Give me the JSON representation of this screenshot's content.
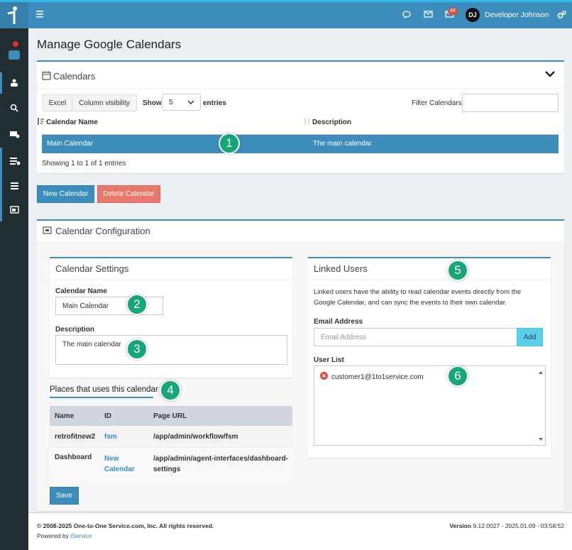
{
  "topbar": {
    "badge": "48",
    "avatar": "DJ",
    "user": "Developer Johnson"
  },
  "page_title": "Manage Google Calendars",
  "calendars": {
    "title": "Calendars",
    "buttons": [
      "Excel",
      "Column visibility"
    ],
    "show_label": "Show",
    "show_value": "5",
    "entries_label": "entries",
    "filter_label": "Filter Calendars",
    "columns": [
      "Calendar Name",
      "Description"
    ],
    "rows": [
      [
        "Main Calendar",
        "The main calendar"
      ]
    ],
    "info": "Showing 1 to 1 of 1 entries"
  },
  "actions": [
    "New Calendar",
    "Delete Calendar"
  ],
  "config": {
    "title": "Calendar Configuration",
    "settings": {
      "title": "Calendar Settings",
      "name_label": "Calendar Name",
      "name_value": "Main Calendar",
      "description_label": "Description",
      "description_value": "The main calendar"
    },
    "places": {
      "title": "Places that uses this calendar",
      "columns": [
        "Name",
        "ID",
        "Page URL"
      ],
      "rows": [
        [
          "retrofitnew2",
          "fsm",
          "/app/admin/workflow/fsm"
        ],
        [
          "Dashboard",
          "New Calendar",
          "/app/admin/agent-interfaces/dashboard-settings"
        ]
      ]
    },
    "save": "Save",
    "linked_users": {
      "title": "Linked Users",
      "description": "Linked users have the ability to read calendar events directly from the Google Calendar, and can sync the events to their own calendar.",
      "email_label": "Email Address",
      "email_placeholder": "Email Address",
      "add": "Add",
      "user_list_label": "User List",
      "users": [
        "customer1@1to1service.com"
      ]
    }
  },
  "callouts": [
    1,
    2,
    3,
    4,
    5,
    6
  ],
  "footer": {
    "copyright": "© 2008-2025 One-to-One Service.com, Inc. All rights reserved.",
    "powered_by": "Powered by",
    "powered_link": "iService",
    "version_label": "Version",
    "version": "9.12.0027 - 2025.01.09 - 03:58:52"
  }
}
